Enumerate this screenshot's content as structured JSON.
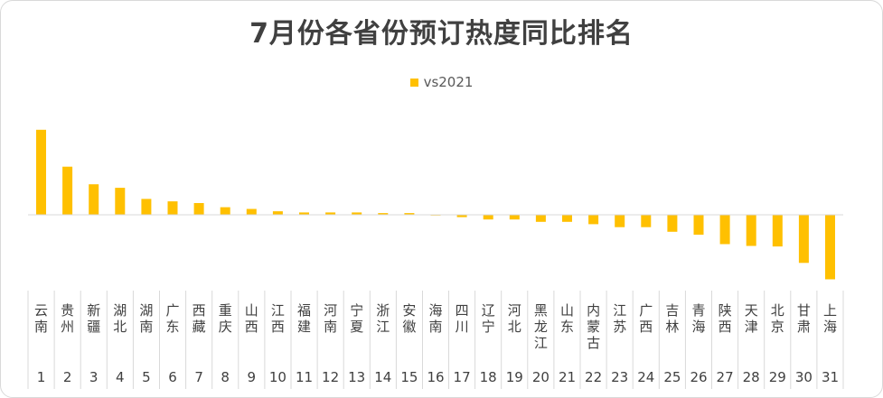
{
  "chart_data": {
    "type": "bar",
    "title": "7月份各省份预订热度同比排名",
    "legend": [
      "vs2021"
    ],
    "legend_position": "top",
    "color": "#ffc000",
    "grid": false,
    "series": [
      {
        "name": "vs2021",
        "values": [
          1.45,
          0.82,
          0.52,
          0.46,
          0.27,
          0.23,
          0.2,
          0.13,
          0.1,
          0.06,
          0.04,
          0.04,
          0.04,
          0.03,
          0.03,
          -0.01,
          -0.04,
          -0.08,
          -0.08,
          -0.12,
          -0.12,
          -0.16,
          -0.21,
          -0.21,
          -0.29,
          -0.34,
          -0.5,
          -0.53,
          -0.54,
          -0.82,
          -1.1
        ]
      }
    ],
    "categories": [
      "云南",
      "贵州",
      "新疆",
      "湖北",
      "湖南",
      "广东",
      "西藏",
      "重庆",
      "山西",
      "江西",
      "福建",
      "河南",
      "宁夏",
      "浙江",
      "安徽",
      "海南",
      "四川",
      "辽宁",
      "河北",
      "黑龙江",
      "山东",
      "内蒙古",
      "江苏",
      "广西",
      "吉林",
      "青海",
      "陕西",
      "天津",
      "北京",
      "甘肃",
      "上海"
    ],
    "ranks": [
      "1",
      "2",
      "3",
      "4",
      "5",
      "6",
      "7",
      "8",
      "9",
      "10",
      "11",
      "12",
      "13",
      "14",
      "15",
      "16",
      "17",
      "18",
      "19",
      "20",
      "21",
      "22",
      "23",
      "24",
      "25",
      "26",
      "27",
      "28",
      "29",
      "30",
      "31"
    ]
  }
}
